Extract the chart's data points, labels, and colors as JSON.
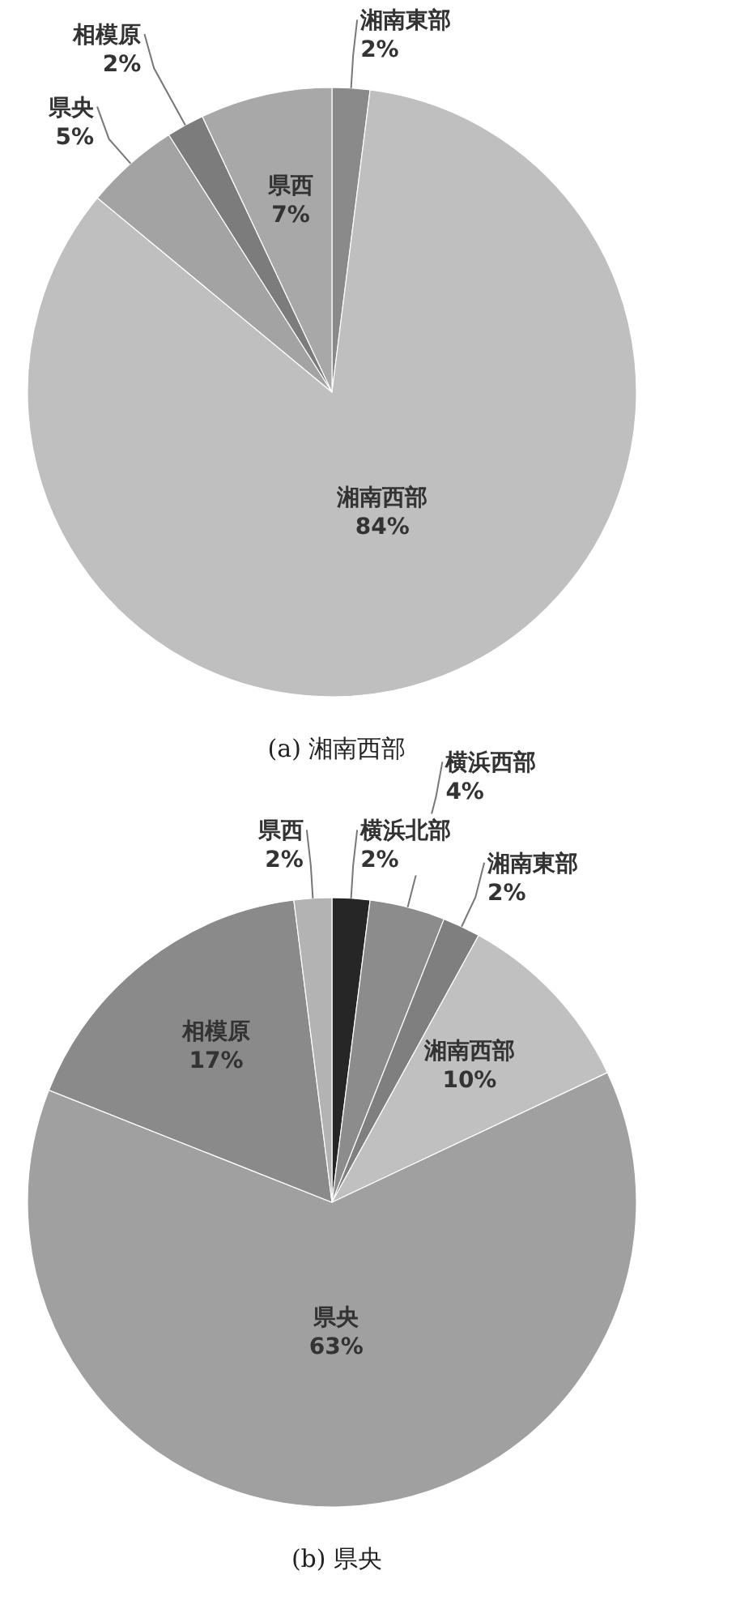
{
  "chart_data": [
    {
      "type": "pie",
      "categories": [
        "湘南東部",
        "湘南西部",
        "県央",
        "相模原",
        "県西"
      ],
      "values": [
        2,
        84,
        5,
        2,
        7
      ],
      "value_labels": [
        "2%",
        "84%",
        "5%",
        "2%",
        "7%"
      ],
      "colors": [
        "#8a8a8a",
        "#bfbfbf",
        "#a3a3a3",
        "#7c7c7c",
        "#a8a8a8"
      ],
      "annotations": [
        "(a) 湘南西部"
      ]
    },
    {
      "type": "pie",
      "categories": [
        "横浜北部",
        "横浜西部",
        "湘南東部",
        "湘南西部",
        "県央",
        "相模原",
        "県西"
      ],
      "values": [
        2,
        4,
        2,
        10,
        63,
        17,
        2
      ],
      "value_labels": [
        "2%",
        "4%",
        "2%",
        "10%",
        "63%",
        "17%",
        "2%"
      ],
      "colors": [
        "#262626",
        "#8c8c8c",
        "#7f7f7f",
        "#c0c0c0",
        "#a0a0a0",
        "#8a8a8a",
        "#b3b3b3"
      ],
      "annotations": [
        "(b) 県央"
      ]
    }
  ]
}
